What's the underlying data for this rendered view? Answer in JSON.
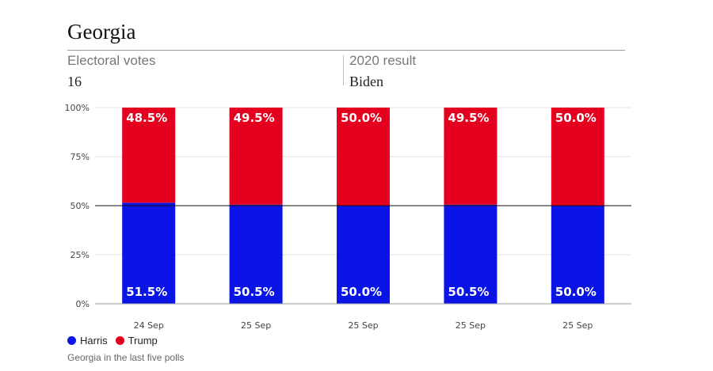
{
  "header": {
    "title": "Georgia",
    "electoral_label": "Electoral votes",
    "electoral_value": "16",
    "result_label": "2020 result",
    "result_value": "Biden"
  },
  "colors": {
    "harris": "#0a14e6",
    "trump": "#e6001f"
  },
  "legend": {
    "harris": "Harris",
    "trump": "Trump"
  },
  "caption": "Georgia in the last five polls",
  "chart_data": {
    "type": "bar",
    "stacked": true,
    "categories": [
      "24 Sep",
      "25 Sep",
      "25 Sep",
      "25 Sep",
      "25 Sep"
    ],
    "series": [
      {
        "name": "Harris",
        "values": [
          51.5,
          50.5,
          50.0,
          50.5,
          50.0
        ],
        "labels": [
          "51.5%",
          "50.5%",
          "50.0%",
          "50.5%",
          "50.0%"
        ]
      },
      {
        "name": "Trump",
        "values": [
          48.5,
          49.5,
          50.0,
          49.5,
          50.0
        ],
        "labels": [
          "48.5%",
          "49.5%",
          "50.0%",
          "49.5%",
          "50.0%"
        ]
      }
    ],
    "yticks": [
      0,
      25,
      50,
      75,
      100
    ],
    "ytick_labels": [
      "0%",
      "25%",
      "50%",
      "75%",
      "100%"
    ],
    "ylim": [
      0,
      100
    ],
    "reference_line": 50,
    "grid": true,
    "legend_position": "bottom-left"
  }
}
